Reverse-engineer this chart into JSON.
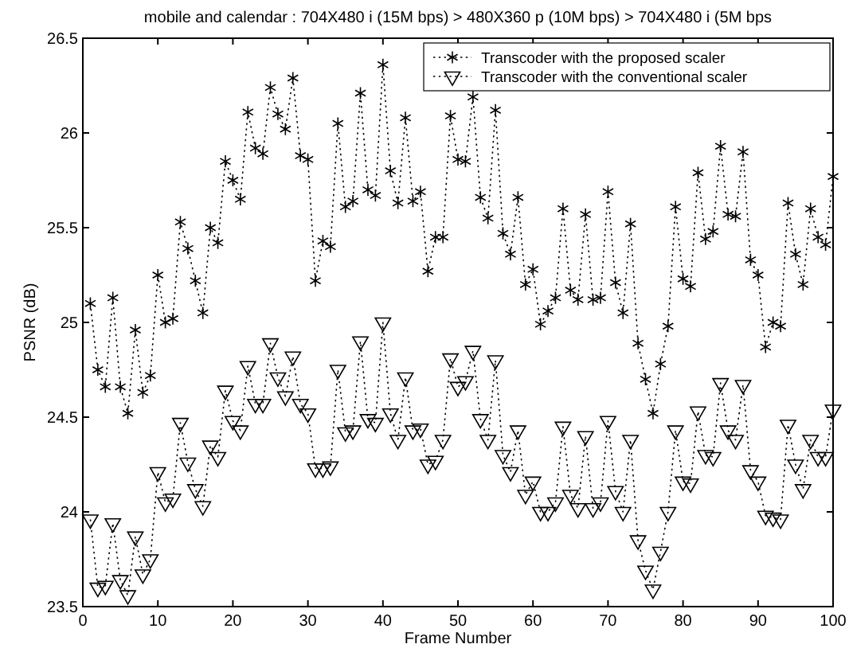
{
  "chart_data": {
    "type": "line",
    "title": "mobile and calendar : 704X480 i (15M bps)   > 480X360 p (10M bps) > 704X480 i (5M bps",
    "xlabel": "Frame Number",
    "ylabel": "PSNR (dB)",
    "x": [
      1,
      2,
      3,
      4,
      5,
      6,
      7,
      8,
      9,
      10,
      11,
      12,
      13,
      14,
      15,
      16,
      17,
      18,
      19,
      20,
      21,
      22,
      23,
      24,
      25,
      26,
      27,
      28,
      29,
      30,
      31,
      32,
      33,
      34,
      35,
      36,
      37,
      38,
      39,
      40,
      41,
      42,
      43,
      44,
      45,
      46,
      47,
      48,
      49,
      50,
      51,
      52,
      53,
      54,
      55,
      56,
      57,
      58,
      59,
      60,
      61,
      62,
      63,
      64,
      65,
      66,
      67,
      68,
      69,
      70,
      71,
      72,
      73,
      74,
      75,
      76,
      77,
      78,
      79,
      80,
      81,
      82,
      83,
      84,
      85,
      86,
      87,
      88,
      89,
      90,
      91,
      92,
      93,
      94,
      95,
      96,
      97,
      98,
      99,
      100
    ],
    "series": [
      {
        "name": "Transcoder with the proposed scaler",
        "color": "#000000",
        "marker": "cross",
        "values": [
          25.1,
          24.75,
          24.66,
          25.13,
          24.66,
          24.52,
          24.96,
          24.63,
          24.72,
          25.25,
          25.0,
          25.02,
          25.53,
          25.39,
          25.22,
          25.05,
          25.5,
          25.42,
          25.85,
          25.75,
          25.65,
          26.11,
          25.92,
          25.89,
          26.24,
          26.1,
          26.02,
          26.29,
          25.88,
          25.86,
          25.22,
          25.43,
          25.4,
          26.05,
          25.61,
          25.64,
          26.21,
          25.7,
          25.67,
          26.36,
          25.8,
          25.63,
          26.08,
          25.64,
          25.69,
          25.27,
          25.45,
          25.45,
          26.09,
          25.86,
          25.85,
          26.19,
          25.66,
          25.55,
          26.12,
          25.47,
          25.36,
          25.66,
          25.2,
          25.28,
          24.99,
          25.06,
          25.13,
          25.6,
          25.17,
          25.12,
          25.57,
          25.12,
          25.13,
          25.69,
          25.21,
          25.05,
          25.52,
          24.89,
          24.7,
          24.52,
          24.78,
          24.98,
          25.61,
          25.23,
          25.19,
          25.79,
          25.44,
          25.48,
          25.93,
          25.57,
          25.56,
          25.9,
          25.33,
          25.25,
          24.87,
          25.0,
          24.98,
          25.63,
          25.36,
          25.2,
          25.6,
          25.45,
          25.41,
          25.77
        ]
      },
      {
        "name": "Transcoder with the conventional scaler",
        "color": "#000000",
        "marker": "triangle",
        "values": [
          23.96,
          23.6,
          23.61,
          23.94,
          23.64,
          23.56,
          23.87,
          23.67,
          23.75,
          24.21,
          24.05,
          24.07,
          24.47,
          24.26,
          24.12,
          24.03,
          24.35,
          24.29,
          24.64,
          24.48,
          24.43,
          24.77,
          24.57,
          24.57,
          24.89,
          24.71,
          24.61,
          24.82,
          24.57,
          24.52,
          24.23,
          24.23,
          24.24,
          24.75,
          24.42,
          24.43,
          24.9,
          24.49,
          24.47,
          25.0,
          24.52,
          24.38,
          24.71,
          24.43,
          24.44,
          24.25,
          24.27,
          24.38,
          24.81,
          24.66,
          24.69,
          24.85,
          24.49,
          24.38,
          24.8,
          24.3,
          24.21,
          24.43,
          24.09,
          24.16,
          24.0,
          24.0,
          24.05,
          24.45,
          24.09,
          24.02,
          24.4,
          24.02,
          24.05,
          24.48,
          24.11,
          24.0,
          24.38,
          23.85,
          23.69,
          23.59,
          23.79,
          24.0,
          24.43,
          24.16,
          24.15,
          24.53,
          24.3,
          24.29,
          24.68,
          24.43,
          24.38,
          24.67,
          24.22,
          24.16,
          23.98,
          23.97,
          23.96,
          24.46,
          24.25,
          24.12,
          24.38,
          24.29,
          24.29,
          24.54
        ]
      }
    ],
    "xlim": [
      0,
      100
    ],
    "xticks": [
      0,
      10,
      20,
      30,
      40,
      50,
      60,
      70,
      80,
      90,
      100
    ],
    "ylim": [
      23.5,
      26.5
    ],
    "yticks": [
      23.5,
      24,
      24.5,
      25,
      25.5,
      26,
      26.5
    ],
    "line_style": "dotted",
    "legend": "top right",
    "grid": false
  }
}
